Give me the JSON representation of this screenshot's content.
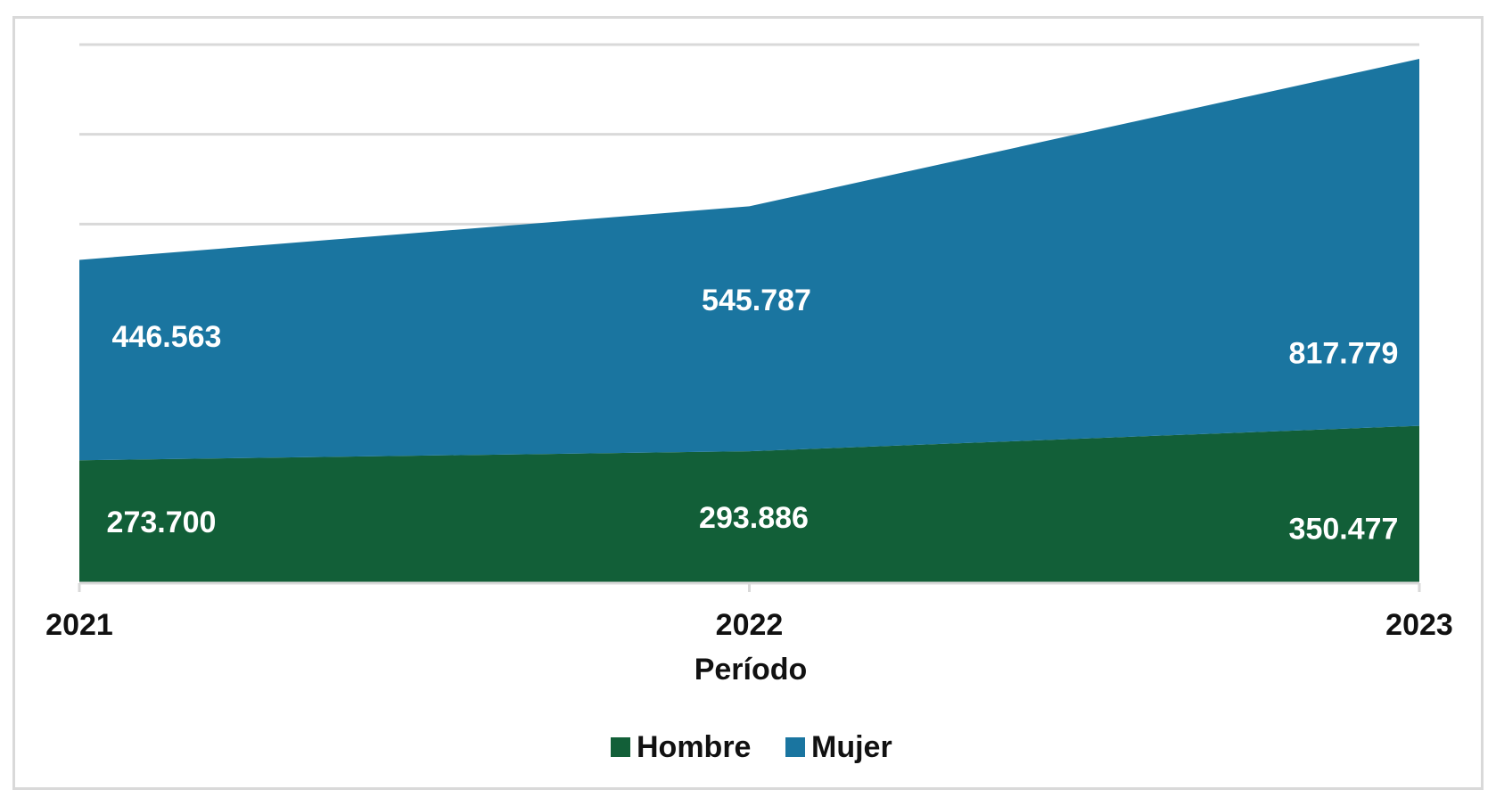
{
  "chart_data": {
    "type": "area",
    "stacked": true,
    "categories": [
      "2021",
      "2022",
      "2023"
    ],
    "xlabel": "Período",
    "ylabel": "",
    "ylim": [
      0,
      1200000
    ],
    "grid": true,
    "legend_position": "bottom",
    "series": [
      {
        "name": "Hombre",
        "color": "#125f38",
        "values": [
          273700,
          293886,
          350477
        ],
        "labels": [
          "273.700",
          "293.886",
          "350.477"
        ]
      },
      {
        "name": "Mujer",
        "color": "#1a75a0",
        "values": [
          446563,
          545787,
          817779
        ],
        "labels": [
          "446.563",
          "545.787",
          "817.779"
        ]
      }
    ]
  }
}
